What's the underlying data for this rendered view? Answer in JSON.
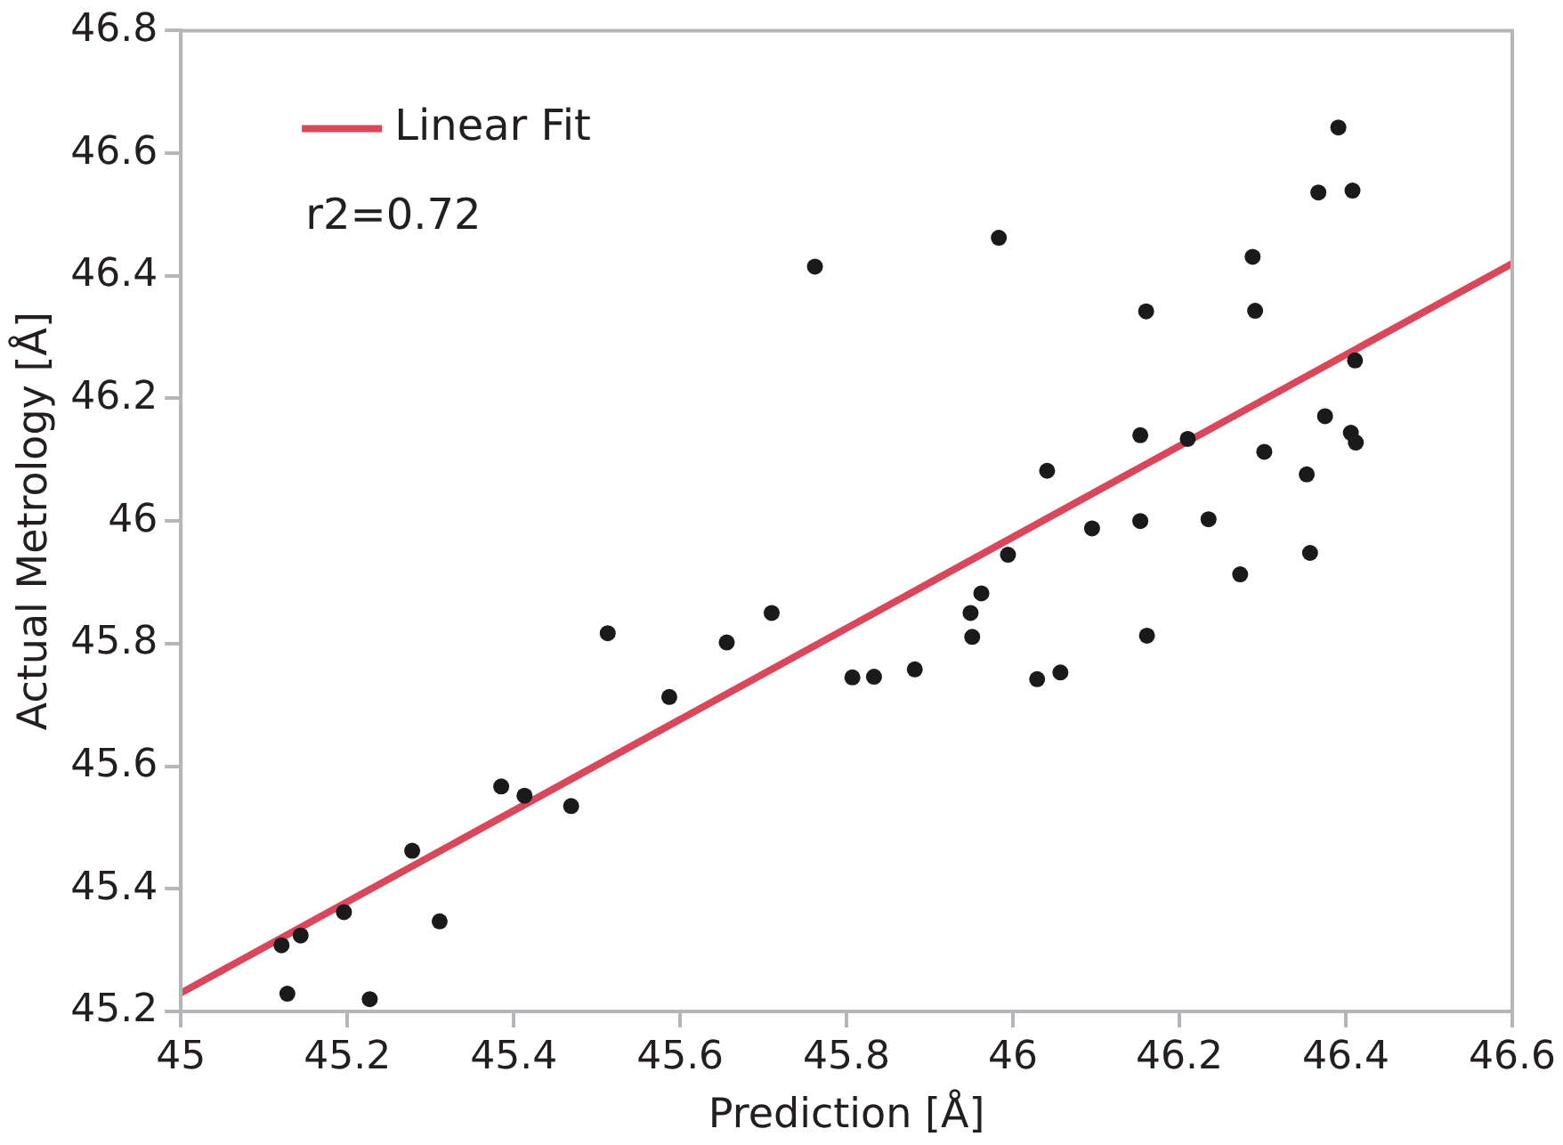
{
  "chart_data": {
    "type": "scatter",
    "xlabel": "Prediction [Å]",
    "ylabel": "Actual Metrology [Å]",
    "annotations": [
      "r2=0.72"
    ],
    "xlim": [
      45,
      46.6
    ],
    "xticks": [
      45,
      45.2,
      45.4,
      45.6,
      45.8,
      46,
      46.2,
      46.4,
      46.6
    ],
    "ylim": [
      45.2,
      46.8
    ],
    "yticks": [
      45.2,
      45.4,
      45.6,
      45.8,
      46,
      46.2,
      46.4,
      46.6,
      46.8
    ],
    "grid": false,
    "legend": "top left",
    "marker": "circle",
    "series": [
      {
        "type": "scatter",
        "color": "#1a1a1a",
        "x": [
          45.121,
          45.144,
          45.128,
          45.196,
          45.227,
          45.311,
          45.278,
          45.385,
          45.413,
          45.469,
          45.513,
          45.587,
          45.656,
          45.71,
          45.762,
          45.807,
          45.833,
          45.882,
          45.949,
          45.951,
          45.962,
          45.994,
          45.983,
          46.029,
          46.041,
          46.057,
          46.095,
          46.153,
          46.153,
          46.161,
          46.16,
          46.21,
          46.235,
          46.273,
          46.288,
          46.291,
          46.302,
          46.353,
          46.357,
          46.367,
          46.375,
          46.391,
          46.406,
          46.408,
          46.411,
          46.412
        ],
        "values": [
          45.308,
          45.324,
          45.229,
          45.362,
          45.22,
          45.347,
          45.462,
          45.567,
          45.552,
          45.535,
          45.817,
          45.713,
          45.802,
          45.85,
          46.415,
          45.745,
          45.746,
          45.758,
          45.85,
          45.811,
          45.882,
          45.945,
          46.462,
          45.742,
          46.082,
          45.753,
          45.988,
          46.14,
          46.0,
          45.813,
          46.342,
          46.134,
          46.003,
          45.913,
          46.431,
          46.343,
          46.113,
          46.076,
          45.948,
          46.536,
          46.171,
          46.642,
          46.144,
          46.539,
          46.262,
          46.128
        ]
      },
      {
        "type": "line",
        "name": "Linear Fit",
        "color": "#d9475a",
        "line_style": "solid",
        "marker": "none",
        "x": [
          45,
          46.6
        ],
        "values": [
          45.23,
          46.42
        ]
      }
    ]
  }
}
